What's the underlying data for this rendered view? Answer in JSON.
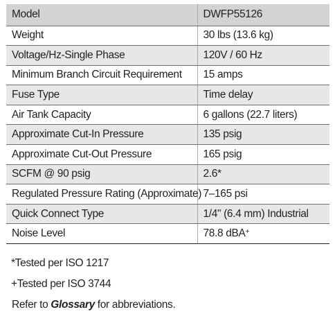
{
  "spec_table": {
    "header": {
      "label": "Model",
      "value": "DWFP55126"
    },
    "rows": [
      {
        "label": "Weight",
        "value": "30 lbs (13.6 kg)"
      },
      {
        "label": "Voltage/Hz-Single Phase",
        "value": "120V / 60 Hz"
      },
      {
        "label": "Minimum Branch Circuit Requirement",
        "value": "15 amps"
      },
      {
        "label": "Fuse Type",
        "value": "Time delay"
      },
      {
        "label": "Air Tank Capacity",
        "value": "6 gallons (22.7 liters)"
      },
      {
        "label": "Approximate Cut-In Pressure",
        "value": "135 psig"
      },
      {
        "label": "Approximate Cut-Out Pressure",
        "value": "165 psig"
      },
      {
        "label": "SCFM @ 90 psig",
        "value": "2.6*"
      },
      {
        "label": "Regulated Pressure Rating (Approximate)",
        "value": "7–165 psi"
      },
      {
        "label": "Quick Connect Type",
        "value": "1/4\" (6.4 mm) Industrial"
      },
      {
        "label": "Noise Level",
        "value": "78.8 dBA",
        "value_mark": "+"
      }
    ]
  },
  "notes": {
    "tested_1": "*Tested per ISO 1217",
    "tested_2": "+Tested per ISO 3744",
    "refer_prefix": "Refer to ",
    "refer_link": "Glossary",
    "refer_suffix": " for abbreviations."
  }
}
